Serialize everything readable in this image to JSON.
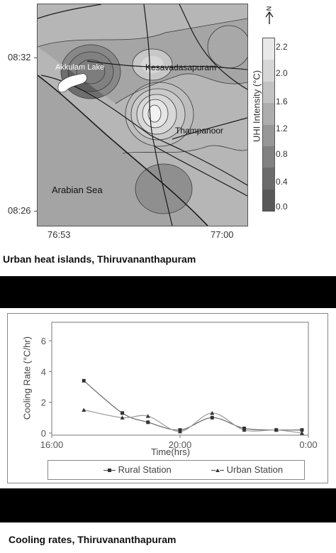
{
  "map": {
    "caption": "Urban heat islands, Thiruvananthapuram",
    "y_ticks": [
      "08:32",
      "08:26"
    ],
    "x_ticks": [
      "76:53",
      "77:00"
    ],
    "places": {
      "lake": "Akkulam Lake",
      "k": "Kesavadasapuram",
      "t": "Thampanoor",
      "sea": "Arabian Sea"
    },
    "north": "N",
    "colorbar_title": "UHI Intensity (°C)",
    "colorbar_values": [
      "2.2",
      "2.0",
      "1.6",
      "1.2",
      "0.8",
      "0.4",
      "0.0"
    ]
  },
  "chart_data": {
    "type": "line",
    "caption": "Cooling rates, Thiruvananthapuram",
    "xlabel": "Time(hrs)",
    "ylabel": "Cooling Rate (°C/hr)",
    "x_tick_labels": [
      "16:00",
      "20:00",
      "0:00"
    ],
    "y_ticks": [
      0,
      2,
      4,
      6
    ],
    "xlim": [
      16,
      24
    ],
    "ylim": [
      0,
      7.2
    ],
    "x": [
      17,
      18.2,
      19,
      20,
      21,
      22,
      23,
      23.8
    ],
    "series": [
      {
        "name": "Rural Station",
        "marker": "square",
        "values": [
          3.4,
          1.3,
          0.7,
          0.2,
          1.0,
          0.3,
          0.2,
          0.2
        ]
      },
      {
        "name": "Urban Station",
        "marker": "triangle",
        "values": [
          1.5,
          1.0,
          1.1,
          0.1,
          1.3,
          0.2,
          0.2,
          0.0
        ]
      }
    ],
    "legend_position": "bottom"
  }
}
